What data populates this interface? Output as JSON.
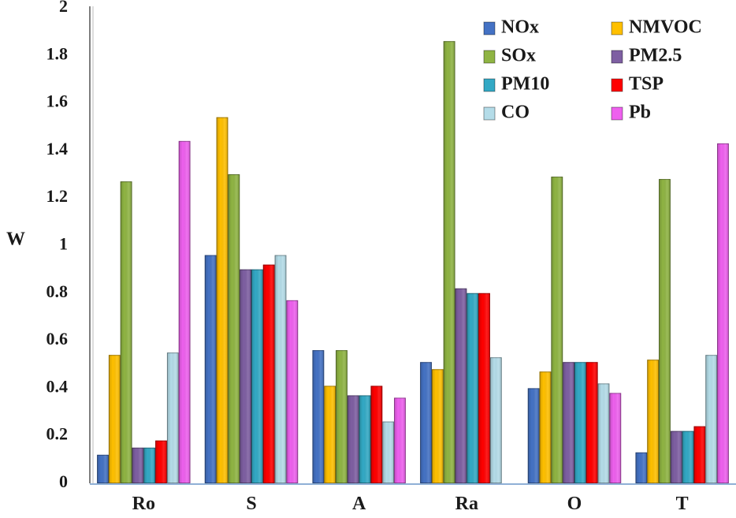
{
  "chart_data": {
    "type": "bar",
    "title": "",
    "xlabel": "",
    "ylabel": "W",
    "ylim": [
      0,
      2
    ],
    "yticks": [
      "0",
      "0.2",
      "0.4",
      "0.6",
      "0.8",
      "1",
      "1.2",
      "1.4",
      "1.6",
      "1.8",
      "2"
    ],
    "grid": false,
    "legend_position": "top-right",
    "categories": [
      "Ro",
      "S",
      "A",
      "Ra",
      "O",
      "T"
    ],
    "series": [
      {
        "name": "NOx",
        "color": "#4472C4",
        "values": [
          0.12,
          0.96,
          0.56,
          0.51,
          0.4,
          0.13
        ]
      },
      {
        "name": "NMVOC",
        "color": "#FFC000",
        "values": [
          0.54,
          1.54,
          0.41,
          0.48,
          0.47,
          0.52
        ]
      },
      {
        "name": "SOx",
        "color": "#8FB443",
        "values": [
          1.27,
          1.3,
          0.56,
          1.86,
          1.29,
          1.28
        ]
      },
      {
        "name": "PM2.5",
        "color": "#7E5FA2",
        "values": [
          0.15,
          0.9,
          0.37,
          0.82,
          0.51,
          0.22
        ]
      },
      {
        "name": "PM10",
        "color": "#33A9C5",
        "values": [
          0.15,
          0.9,
          0.37,
          0.8,
          0.51,
          0.22
        ]
      },
      {
        "name": "TSP",
        "color": "#FF0000",
        "values": [
          0.18,
          0.92,
          0.41,
          0.8,
          0.51,
          0.24
        ]
      },
      {
        "name": "CO",
        "color": "#B4DCE8",
        "values": [
          0.55,
          0.96,
          0.26,
          0.53,
          0.42,
          0.54
        ]
      },
      {
        "name": "Pb",
        "color": "#EE60EE",
        "values": [
          1.44,
          0.77,
          0.36,
          0.0,
          0.38,
          1.43
        ]
      }
    ]
  }
}
